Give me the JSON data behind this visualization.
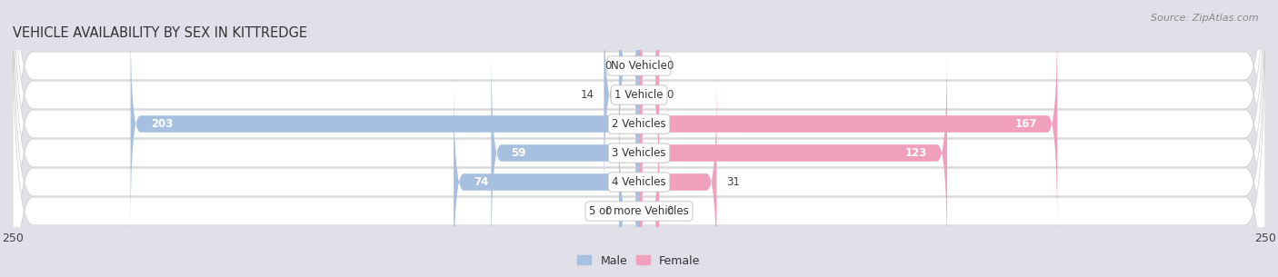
{
  "title": "VEHICLE AVAILABILITY BY SEX IN KITTREDGE",
  "source": "Source: ZipAtlas.com",
  "categories": [
    "No Vehicle",
    "1 Vehicle",
    "2 Vehicles",
    "3 Vehicles",
    "4 Vehicles",
    "5 or more Vehicles"
  ],
  "male_values": [
    0,
    14,
    203,
    59,
    74,
    0
  ],
  "female_values": [
    0,
    0,
    167,
    123,
    31,
    0
  ],
  "male_color": "#a8c0e0",
  "female_color": "#f0a0bc",
  "xlim": 250,
  "bar_height": 0.58,
  "row_bg_color": "#e8e8ee",
  "row_inner_color": "#f5f5f8",
  "background_color": "#e0e0e8",
  "title_fontsize": 10.5,
  "source_fontsize": 8,
  "label_fontsize": 8.5,
  "category_fontsize": 8.5,
  "axis_fontsize": 9,
  "legend_fontsize": 9,
  "min_bar_stub": 8
}
